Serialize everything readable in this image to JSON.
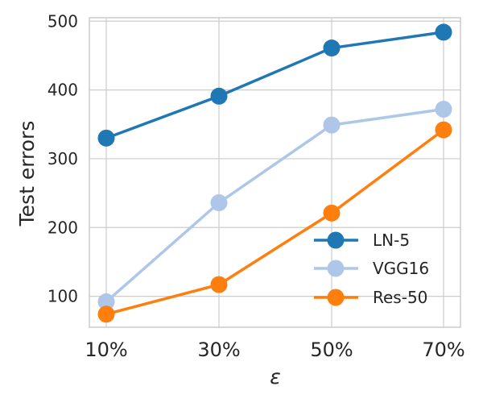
{
  "chart_data": {
    "type": "line",
    "title": "",
    "xlabel": "ε",
    "ylabel": "Test errors",
    "categories": [
      "10%",
      "30%",
      "50%",
      "70%"
    ],
    "ylim": [
      55,
      505
    ],
    "yticks": [
      100,
      200,
      300,
      400,
      500
    ],
    "grid": true,
    "legend_position": "lower-right",
    "series": [
      {
        "name": "LN-5",
        "color": "#1f77b4",
        "values": [
          330,
          391,
          461,
          484
        ]
      },
      {
        "name": "VGG16",
        "color": "#aec7e8",
        "values": [
          92,
          236,
          349,
          372
        ]
      },
      {
        "name": "Res-50",
        "color": "#ff7f0e",
        "values": [
          74,
          117,
          221,
          342
        ]
      }
    ]
  }
}
